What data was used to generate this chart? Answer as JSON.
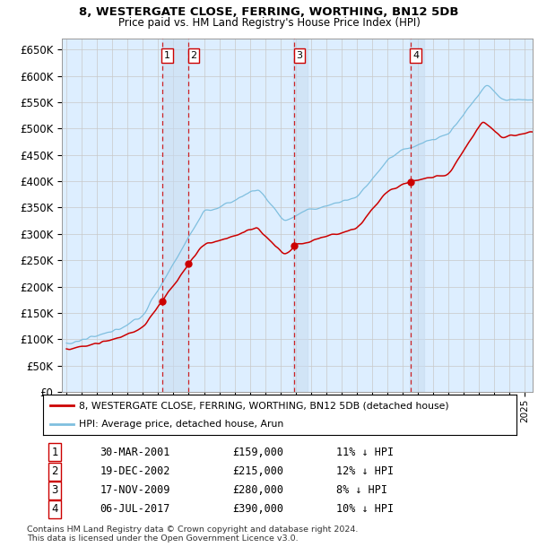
{
  "title1": "8, WESTERGATE CLOSE, FERRING, WORTHING, BN12 5DB",
  "title2": "Price paid vs. HM Land Registry's House Price Index (HPI)",
  "ytick_vals": [
    0,
    50000,
    100000,
    150000,
    200000,
    250000,
    300000,
    350000,
    400000,
    450000,
    500000,
    550000,
    600000,
    650000
  ],
  "ylim": [
    0,
    670000
  ],
  "xlim_years": [
    1994.7,
    2025.5
  ],
  "purchases": [
    {
      "label": "1",
      "year": 2001.25,
      "price": 159000,
      "date": "30-MAR-2001",
      "pct": "11%"
    },
    {
      "label": "2",
      "year": 2002.96,
      "price": 215000,
      "date": "19-DEC-2002",
      "pct": "12%"
    },
    {
      "label": "3",
      "year": 2009.88,
      "price": 280000,
      "date": "17-NOV-2009",
      "pct": "8%"
    },
    {
      "label": "4",
      "year": 2017.5,
      "price": 390000,
      "date": "06-JUL-2017",
      "pct": "10%"
    }
  ],
  "legend_line1": "8, WESTERGATE CLOSE, FERRING, WORTHING, BN12 5DB (detached house)",
  "legend_line2": "HPI: Average price, detached house, Arun",
  "footer": "Contains HM Land Registry data © Crown copyright and database right 2024.\nThis data is licensed under the Open Government Licence v3.0.",
  "table_rows": [
    [
      "1",
      "30-MAR-2001",
      "£159,000",
      "11% ↓ HPI"
    ],
    [
      "2",
      "19-DEC-2002",
      "£215,000",
      "12% ↓ HPI"
    ],
    [
      "3",
      "17-NOV-2009",
      "£280,000",
      "8% ↓ HPI"
    ],
    [
      "4",
      "06-JUL-2017",
      "£390,000",
      "10% ↓ HPI"
    ]
  ],
  "hpi_color": "#7fbfdf",
  "price_color": "#cc0000",
  "vline_color": "#cc0000",
  "grid_color": "#c8c8c8",
  "bg_color": "#ffffff",
  "plot_bg": "#ddeeff",
  "shade_color": "#c8dcf0"
}
